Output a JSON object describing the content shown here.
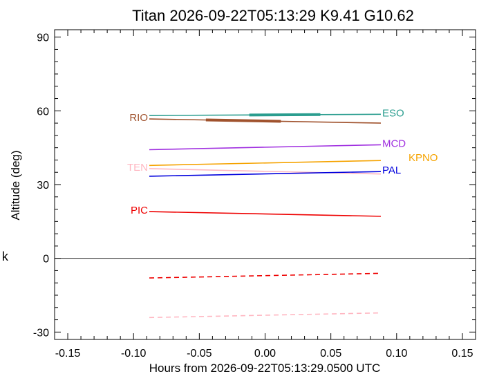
{
  "chart_data": {
    "type": "line",
    "title": "Titan 2026-09-22T05:13:29  K9.41  G10.62",
    "xlabel": "Hours from 2026-09-22T05:13:29.0500 UTC",
    "ylabel": "Altitude (deg)",
    "xlim": [
      -0.16,
      0.16
    ],
    "ylim": [
      -33,
      93
    ],
    "x_ticks": [
      -0.15,
      -0.1,
      -0.05,
      0.0,
      0.05,
      0.1,
      0.15
    ],
    "x_tick_labels": [
      "-0.15",
      "-0.10",
      "-0.05",
      "0.00",
      "0.05",
      "0.10",
      "0.15"
    ],
    "y_ticks": [
      -30,
      0,
      30,
      60,
      90
    ],
    "y_tick_labels": [
      "-30",
      "0",
      "30",
      "60",
      "90"
    ],
    "zero_line": 0,
    "grid": false,
    "stray_text": "k",
    "series": [
      {
        "name": "ESO",
        "color": "#2a9d8f",
        "x": [
          -0.088,
          0.088
        ],
        "y": [
          58.1,
          58.6
        ],
        "label_side": "right",
        "thick": [
          -0.012,
          0.042
        ]
      },
      {
        "name": "RIO",
        "color": "#a0522d",
        "x": [
          -0.088,
          0.088
        ],
        "y": [
          56.7,
          55.0
        ],
        "label_side": "left",
        "thick": [
          -0.045,
          0.012
        ]
      },
      {
        "name": "MCD",
        "color": "#a030e0",
        "x": [
          -0.088,
          0.088
        ],
        "y": [
          44.2,
          46.2
        ],
        "label_side": "right"
      },
      {
        "name": "KPNO",
        "color": "#f5a300",
        "x": [
          -0.088,
          0.088
        ],
        "y": [
          37.8,
          39.8
        ],
        "label_side": "right"
      },
      {
        "name": "TEN",
        "color": "#ffb6c1",
        "x": [
          -0.088,
          0.088
        ],
        "y": [
          36.5,
          34.3
        ],
        "label_side": "left"
      },
      {
        "name": "PAL",
        "color": "#0000dd",
        "x": [
          -0.088,
          0.088
        ],
        "y": [
          33.4,
          35.3
        ],
        "label_side": "right"
      },
      {
        "name": "PIC",
        "color": "#ee0000",
        "x": [
          -0.088,
          0.088
        ],
        "y": [
          19.0,
          17.1
        ],
        "label_side": "left"
      },
      {
        "name": "",
        "color": "#ee0000",
        "x": [
          -0.088,
          0.088
        ],
        "y": [
          -8.0,
          -6.1
        ],
        "dashed": true
      },
      {
        "name": "",
        "color": "#ffb6c1",
        "x": [
          -0.088,
          0.088
        ],
        "y": [
          -24.1,
          -22.2
        ],
        "dashed": true
      }
    ]
  }
}
